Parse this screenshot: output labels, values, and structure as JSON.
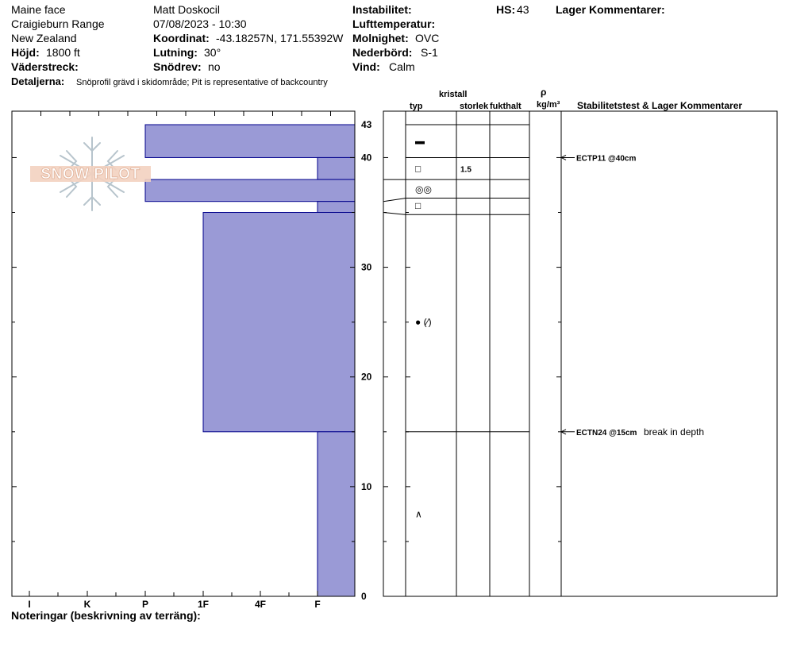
{
  "header": {
    "location": "Maine face",
    "range": "Craigieburn Range",
    "country": "New Zealand",
    "elevation_label": "Höjd:",
    "elevation": "1800 ft",
    "aspect_label": "Väderstreck:",
    "observer": "Matt Doskocil",
    "datetime": "07/08/2023 - 10:30",
    "coord_label": "Koordinat:",
    "coord": "-43.18257N, 171.55392W",
    "slope_label": "Lutning:",
    "slope": "30°",
    "drift_label": "Snödrev:",
    "drift": "no",
    "instability_label": "Instabilitet:",
    "airtemp_label": "Lufttemperatur:",
    "sky_label": "Molnighet:",
    "sky": "OVC",
    "precip_label": "Nederbörd:",
    "precip": "S-1",
    "wind_label": "Vind:",
    "wind": "Calm",
    "hs_label": "HS:",
    "hs": "43",
    "layer_comments_label": "Lager Kommentarer:",
    "details_label": "Detaljerna:",
    "details": "Snöprofil grävd i skidområde;  Pit is representative of backcountry",
    "notes_label": "Noteringar (beskrivning av terräng):"
  },
  "columns": {
    "crystal": "kristall",
    "type": "typ",
    "size": "storlek",
    "moisture": "fukthalt",
    "rho": "ρ",
    "density_unit": "kg/m³",
    "stability": "Stabilitetstest & Lager Kommentarer"
  },
  "logo_text": "SNOW PILOT",
  "colors": {
    "hardness_fill": "#9a9ad6",
    "hardness_stroke": "#00008b"
  },
  "chart_data": {
    "type": "bar",
    "y_axis": {
      "range": [
        0,
        43
      ],
      "ticks": [
        0,
        10,
        20,
        30,
        40,
        43
      ]
    },
    "x_axis": {
      "categories": [
        "I",
        "K",
        "P",
        "1F",
        "4F",
        "F"
      ]
    },
    "hardness_layers": [
      {
        "top": 43,
        "bottom": 40,
        "hardness": "P"
      },
      {
        "top": 40,
        "bottom": 38,
        "hardness": "F"
      },
      {
        "top": 38,
        "bottom": 36,
        "hardness": "P"
      },
      {
        "top": 36,
        "bottom": 35,
        "hardness": "F"
      },
      {
        "top": 35,
        "bottom": 15,
        "hardness": "1F"
      },
      {
        "top": 15,
        "bottom": 0,
        "hardness": "F"
      }
    ],
    "layer_boundaries": [
      43,
      40,
      38,
      36.3,
      34.8,
      15
    ],
    "crystals": [
      {
        "depth": 41.5,
        "symbol": "▬",
        "size": ""
      },
      {
        "depth": 39,
        "symbol": "□",
        "size": "1.5"
      },
      {
        "depth": 37.1,
        "symbol": "◎◎",
        "size": ""
      },
      {
        "depth": 35.6,
        "symbol": "□",
        "size": ""
      },
      {
        "depth": 25,
        "symbol": "● (⁄)",
        "size": ""
      },
      {
        "depth": 7.5,
        "symbol": "∧",
        "size": ""
      }
    ],
    "tests": [
      {
        "depth": 40,
        "label": "ECTP11 @40cm",
        "comment": ""
      },
      {
        "depth": 15,
        "label": "ECTN24 @15cm",
        "comment": "break in depth"
      }
    ]
  }
}
